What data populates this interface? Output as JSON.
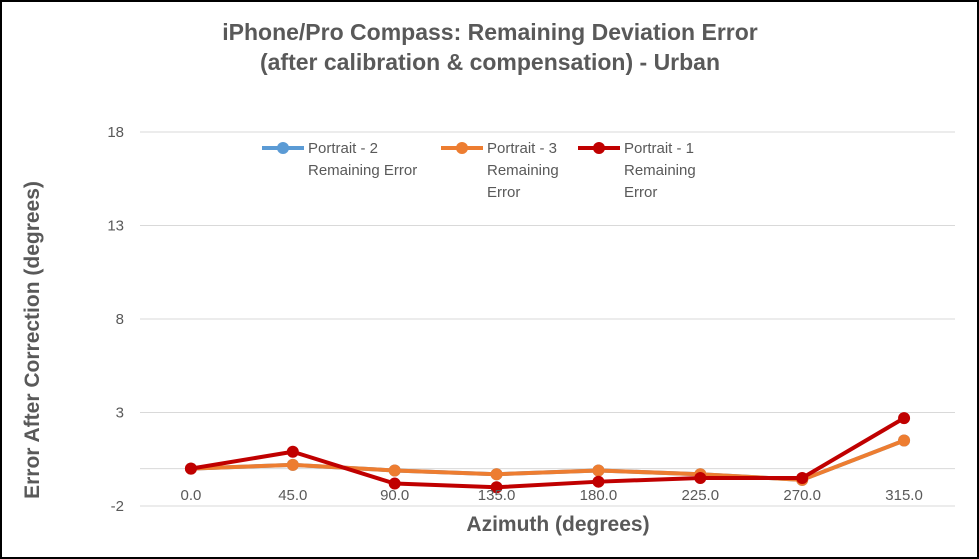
{
  "chart_data": {
    "type": "line",
    "title": [
      "iPhone/Pro Compass:  Remaining Deviation Error",
      "(after calibration & compensation)  - Urban"
    ],
    "xlabel": "Azimuth (degrees)",
    "ylabel": "Error After Correction (degrees)",
    "categories": [
      "0.0",
      "45.0",
      "90.0",
      "135.0",
      "180.0",
      "225.0",
      "270.0",
      "315.0"
    ],
    "yticks": [
      "18",
      "13",
      "8",
      "3",
      "-2"
    ],
    "ylim": [
      -2,
      18
    ],
    "grid": true,
    "legend_position": "top-center",
    "series": [
      {
        "name": [
          "Portrait - 2",
          "Remaining Error"
        ],
        "color": "#5B9BD5",
        "values": [
          0.0,
          0.2,
          -0.1,
          -0.3,
          -0.1,
          -0.3,
          -0.6,
          1.5
        ]
      },
      {
        "name": [
          "Portrait - 3",
          "Remaining",
          "Error"
        ],
        "color": "#ED7D31",
        "values": [
          0.0,
          0.2,
          -0.1,
          -0.3,
          -0.1,
          -0.3,
          -0.6,
          1.5
        ]
      },
      {
        "name": [
          "Portrait - 1",
          "Remaining",
          "Error"
        ],
        "color": "#C00000",
        "values": [
          0.0,
          0.9,
          -0.8,
          -1.0,
          -0.7,
          -0.5,
          -0.5,
          2.7
        ]
      }
    ]
  }
}
